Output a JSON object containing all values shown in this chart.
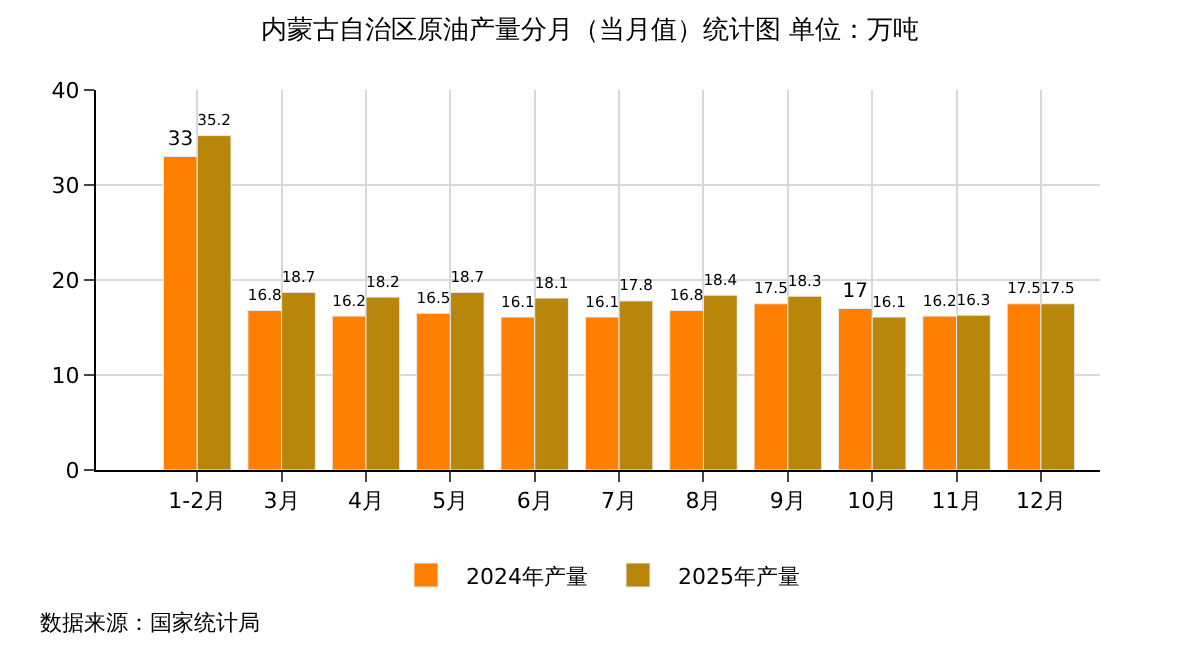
{
  "chart_data": {
    "type": "bar",
    "title": "内蒙古自治区原油产量分月（当月值）统计图 单位：万吨",
    "categories": [
      "1-2月",
      "3月",
      "4月",
      "5月",
      "6月",
      "7月",
      "8月",
      "9月",
      "10月",
      "11月",
      "12月"
    ],
    "series": [
      {
        "name": "2024年产量",
        "color": "#ff8000",
        "values": [
          33,
          16.8,
          16.2,
          16.5,
          16.1,
          16.1,
          16.8,
          17.5,
          17,
          16.2,
          17.5
        ]
      },
      {
        "name": "2025年产量",
        "color": "#b8860b",
        "values": [
          35.2,
          18.7,
          18.2,
          18.7,
          18.1,
          17.8,
          18.4,
          18.3,
          16.1,
          16.3,
          17.5
        ]
      }
    ],
    "ylim": [
      0,
      40
    ],
    "yticks": [
      0,
      10,
      20,
      30,
      40
    ],
    "grid": true,
    "legend": "bottom",
    "data_labels": true,
    "annotations": [
      "数据来源：国家统计局"
    ]
  }
}
